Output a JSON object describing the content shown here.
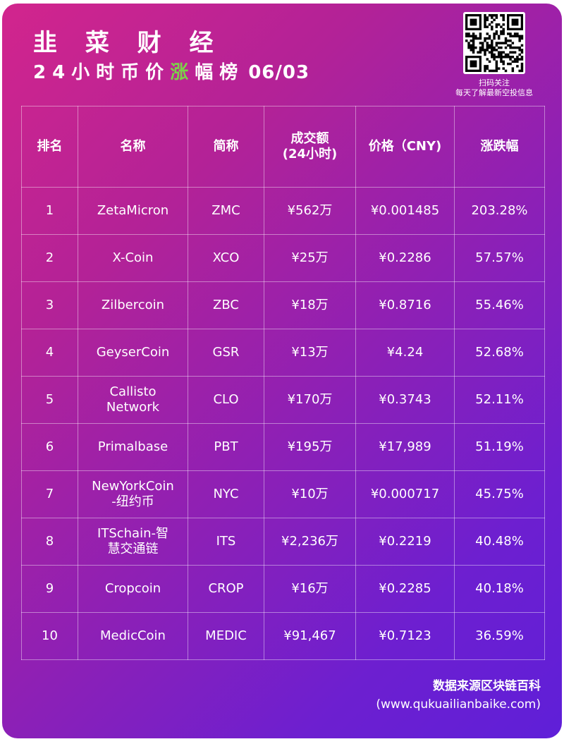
{
  "header": {
    "title": "韭 菜 财 经",
    "subtitle_pre": "24小时币价",
    "subtitle_highlight": "涨",
    "subtitle_post": "幅榜",
    "date": "06/03"
  },
  "qr": {
    "caption_line1": "扫码关注",
    "caption_line2": "每天了解最新空投信息"
  },
  "table": {
    "headers": {
      "rank": "排名",
      "name": "名称",
      "abbr": "简称",
      "volume_line1": "成交额",
      "volume_line2": "(24小时)",
      "price": "价格（CNY)",
      "change": "涨跌幅"
    },
    "rows": [
      {
        "rank": "1",
        "name_l1": "ZetaMicron",
        "name_l2": "",
        "abbr": "ZMC",
        "volume": "¥562万",
        "price": "¥0.001485",
        "change": "203.28%"
      },
      {
        "rank": "2",
        "name_l1": "X-Coin",
        "name_l2": "",
        "abbr": "XCO",
        "volume": "¥25万",
        "price": "¥0.2286",
        "change": "57.57%"
      },
      {
        "rank": "3",
        "name_l1": "Zilbercoin",
        "name_l2": "",
        "abbr": "ZBC",
        "volume": "¥18万",
        "price": "¥0.8716",
        "change": "55.46%"
      },
      {
        "rank": "4",
        "name_l1": "GeyserCoin",
        "name_l2": "",
        "abbr": "GSR",
        "volume": "¥13万",
        "price": "¥4.24",
        "change": "52.68%"
      },
      {
        "rank": "5",
        "name_l1": "Callisto",
        "name_l2": "Network",
        "abbr": "CLO",
        "volume": "¥170万",
        "price": "¥0.3743",
        "change": "52.11%"
      },
      {
        "rank": "6",
        "name_l1": "Primalbase",
        "name_l2": "",
        "abbr": "PBT",
        "volume": "¥195万",
        "price": "¥17,989",
        "change": "51.19%"
      },
      {
        "rank": "7",
        "name_l1": "NewYorkCoin",
        "name_l2": "-纽约币",
        "abbr": "NYC",
        "volume": "¥10万",
        "price": "¥0.000717",
        "change": "45.75%"
      },
      {
        "rank": "8",
        "name_l1": "ITSchain-智",
        "name_l2": "慧交通链",
        "abbr": "ITS",
        "volume": "¥2,236万",
        "price": "¥0.2219",
        "change": "40.48%"
      },
      {
        "rank": "9",
        "name_l1": "Cropcoin",
        "name_l2": "",
        "abbr": "CROP",
        "volume": "¥16万",
        "price": "¥0.2285",
        "change": "40.18%"
      },
      {
        "rank": "10",
        "name_l1": "MedicCoin",
        "name_l2": "",
        "abbr": "MEDIC",
        "volume": "¥91,467",
        "price": "¥0.7123",
        "change": "36.59%"
      }
    ]
  },
  "footer": {
    "source": "数据来源区块链百科",
    "url": "(www.qukuailianbaike.com)"
  },
  "colors": {
    "highlight": "#7cd14a",
    "gradient_start": "#d2258d",
    "gradient_end": "#5f1fd8"
  }
}
